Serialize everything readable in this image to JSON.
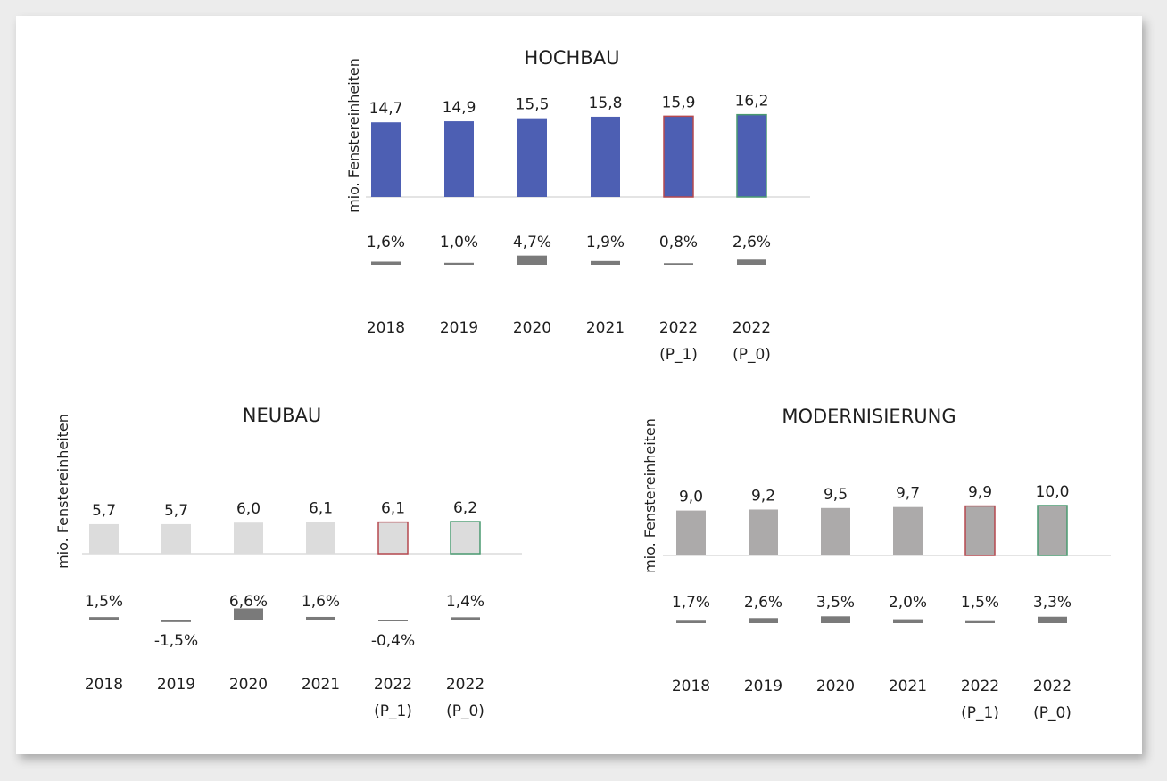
{
  "chart_data": [
    {
      "type": "bar",
      "title": "HOCHBAU",
      "ylabel": "mio. Fenstereinheiten",
      "categories": [
        [
          "2018"
        ],
        [
          "2019"
        ],
        [
          "2020"
        ],
        [
          "2021"
        ],
        [
          "2022",
          "(P_1)"
        ],
        [
          "2022",
          "(P_0)"
        ]
      ],
      "values": [
        14.7,
        14.9,
        15.5,
        15.8,
        15.9,
        16.2
      ],
      "value_labels": [
        "14,7",
        "14,9",
        "15,5",
        "15,8",
        "15,9",
        "16,2"
      ],
      "growth": [
        1.6,
        1.0,
        4.7,
        1.9,
        0.8,
        2.6
      ],
      "growth_labels": [
        "1,6%",
        "1,0%",
        "4,7%",
        "1,9%",
        "0,8%",
        "2,6%"
      ],
      "bar_color": "#4d5fb3",
      "bar_outline": [
        "#4d5fb3",
        "#4d5fb3",
        "#4d5fb3",
        "#4d5fb3",
        "#b5484f",
        "#4a9a70"
      ],
      "growth_color": "#7a7a7a"
    },
    {
      "type": "bar",
      "title": "NEUBAU",
      "ylabel": "mio. Fenstereinheiten",
      "categories": [
        [
          "2018"
        ],
        [
          "2019"
        ],
        [
          "2020"
        ],
        [
          "2021"
        ],
        [
          "2022",
          "(P_1)"
        ],
        [
          "2022",
          "(P_0)"
        ]
      ],
      "values": [
        5.7,
        5.7,
        6.0,
        6.1,
        6.1,
        6.2
      ],
      "value_labels": [
        "5,7",
        "5,7",
        "6,0",
        "6,1",
        "6,1",
        "6,2"
      ],
      "growth": [
        1.5,
        -1.5,
        6.6,
        1.6,
        -0.4,
        1.4
      ],
      "growth_labels": [
        "1,5%",
        "-1,5%",
        "6,6%",
        "1,6%",
        "-0,4%",
        "1,4%"
      ],
      "bar_color": "#dcdcdc",
      "bar_outline": [
        "#dcdcdc",
        "#dcdcdc",
        "#dcdcdc",
        "#dcdcdc",
        "#b5484f",
        "#4a9a70"
      ],
      "growth_color": "#7a7a7a"
    },
    {
      "type": "bar",
      "title": "MODERNISIERUNG",
      "ylabel": "mio. Fenstereinheiten",
      "categories": [
        [
          "2018"
        ],
        [
          "2019"
        ],
        [
          "2020"
        ],
        [
          "2021"
        ],
        [
          "2022",
          "(P_1)"
        ],
        [
          "2022",
          "(P_0)"
        ]
      ],
      "values": [
        9.0,
        9.2,
        9.5,
        9.7,
        9.9,
        10.0
      ],
      "value_labels": [
        "9,0",
        "9,2",
        "9,5",
        "9,7",
        "9,9",
        "10,0"
      ],
      "growth": [
        1.7,
        2.6,
        3.5,
        2.0,
        1.5,
        3.3
      ],
      "growth_labels": [
        "1,7%",
        "2,6%",
        "3,5%",
        "2,0%",
        "1,5%",
        "3,3%"
      ],
      "bar_color": "#acaaaa",
      "bar_outline": [
        "#acaaaa",
        "#acaaaa",
        "#acaaaa",
        "#acaaaa",
        "#b5484f",
        "#4a9a70"
      ],
      "growth_color": "#7a7a7a"
    }
  ]
}
